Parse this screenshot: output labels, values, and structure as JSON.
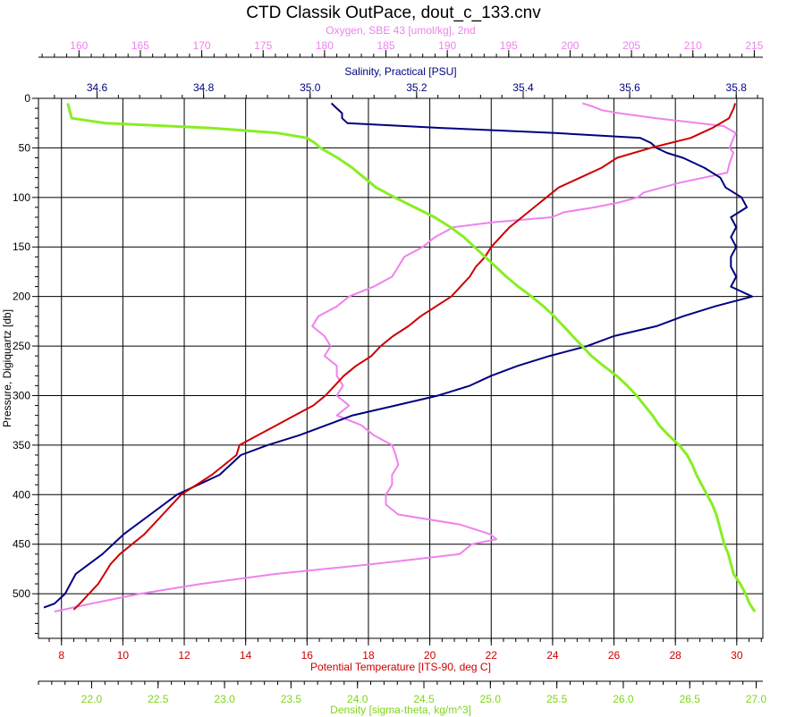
{
  "chart_data": {
    "type": "line",
    "title": "CTD Classik OutPace, dout_c_133.cnv",
    "y_axis": {
      "label": "Pressure, Digiquartz [db]",
      "range": [
        0,
        545
      ],
      "inverted": true,
      "ticks": [
        0,
        50,
        100,
        150,
        200,
        250,
        300,
        350,
        400,
        450,
        500
      ],
      "tick_labels": [
        "0",
        "50",
        "100",
        "150",
        "200",
        "250",
        "300",
        "350",
        "400",
        "450",
        "500"
      ]
    },
    "x_axes": [
      {
        "id": "oxygen",
        "position": "top-outer",
        "label": "Oxygen, SBE 43 [umol/kg], 2nd",
        "color": "#ee82ee",
        "range": [
          156.7,
          215.7
        ],
        "ticks": [
          160,
          165,
          170,
          175,
          180,
          185,
          190,
          195,
          200,
          205,
          210,
          215
        ],
        "tick_labels": [
          "160",
          "165",
          "170",
          "175",
          "180",
          "185",
          "190",
          "195",
          "200",
          "205",
          "210",
          "215"
        ]
      },
      {
        "id": "salinity",
        "position": "top-inner",
        "label": "Salinity, Practical [PSU]",
        "color": "#000080",
        "range": [
          34.49,
          35.85
        ],
        "ticks": [
          34.6,
          34.8,
          35.0,
          35.2,
          35.4,
          35.6,
          35.8
        ],
        "tick_labels": [
          "34.6",
          "34.8",
          "35.0",
          "35.2",
          "35.4",
          "35.6",
          "35.8"
        ]
      },
      {
        "id": "temperature",
        "position": "bottom-inner",
        "label": "Potential Temperature [ITS-90, deg C]",
        "color": "#cc0000",
        "range": [
          7.25,
          30.85
        ],
        "ticks": [
          8,
          10,
          12,
          14,
          16,
          18,
          20,
          22,
          24,
          26,
          28,
          30
        ],
        "tick_labels": [
          "8",
          "10",
          "12",
          "14",
          "16",
          "18",
          "20",
          "22",
          "24",
          "26",
          "28",
          "30"
        ]
      },
      {
        "id": "density",
        "position": "bottom-outer",
        "label": "Density [sigma-theta, kg/m^3]",
        "color": "#88ee22",
        "range": [
          21.6,
          27.05
        ],
        "ticks": [
          22.0,
          22.5,
          23.0,
          23.5,
          24.0,
          24.5,
          25.0,
          25.5,
          26.0,
          26.5,
          27.0
        ],
        "tick_labels": [
          "22.0",
          "22.5",
          "23.0",
          "23.5",
          "24.0",
          "24.5",
          "25.0",
          "25.5",
          "26.0",
          "26.5",
          "27.0"
        ]
      }
    ],
    "grid": true,
    "series": [
      {
        "name": "Oxygen, SBE 43 [umol/kg], 2nd",
        "axis": "oxygen",
        "color": "#ee82ee",
        "pressure": [
          5,
          8,
          12,
          15,
          20,
          28,
          35,
          40,
          50,
          55,
          65,
          75,
          85,
          95,
          100,
          105,
          110,
          115,
          120,
          125,
          130,
          140,
          150,
          160,
          170,
          180,
          190,
          200,
          210,
          220,
          230,
          240,
          250,
          260,
          270,
          280,
          290,
          300,
          310,
          320,
          330,
          340,
          350,
          360,
          370,
          380,
          390,
          400,
          410,
          420,
          430,
          440,
          445,
          450,
          460,
          470,
          480,
          490,
          500,
          510,
          518
        ],
        "values": [
          201.0,
          201.8,
          202.6,
          204.0,
          207.0,
          212.5,
          213.5,
          213.3,
          213.0,
          213.3,
          213.0,
          212.8,
          209.0,
          206.0,
          205.5,
          204.0,
          202.0,
          199.5,
          198.5,
          193.8,
          190.5,
          189.0,
          188.0,
          186.5,
          186.0,
          185.5,
          184.0,
          182.0,
          181.0,
          179.5,
          179.0,
          180.0,
          180.5,
          180.0,
          181.0,
          181.0,
          181.5,
          181.0,
          182.0,
          181.0,
          183.0,
          184.0,
          185.5,
          185.8,
          186.0,
          185.5,
          185.5,
          185.0,
          185.0,
          186.0,
          191.0,
          193.5,
          194.0,
          192.0,
          191.0,
          184.0,
          176.0,
          170.0,
          165.0,
          161.0,
          158.0
        ]
      },
      {
        "name": "Salinity, Practical [PSU]",
        "axis": "salinity",
        "color": "#000080",
        "pressure": [
          5,
          10,
          15,
          20,
          25,
          30,
          35,
          40,
          45,
          50,
          55,
          60,
          70,
          80,
          90,
          100,
          110,
          120,
          130,
          140,
          150,
          160,
          170,
          180,
          190,
          200,
          210,
          220,
          230,
          240,
          250,
          260,
          270,
          280,
          290,
          300,
          310,
          320,
          330,
          340,
          350,
          360,
          370,
          380,
          390,
          400,
          420,
          440,
          460,
          480,
          500,
          510,
          514
        ],
        "values": [
          35.04,
          35.05,
          35.06,
          35.06,
          35.07,
          35.25,
          35.46,
          35.62,
          35.64,
          35.65,
          35.67,
          35.7,
          35.74,
          35.77,
          35.78,
          35.81,
          35.82,
          35.79,
          35.8,
          35.79,
          35.8,
          35.79,
          35.79,
          35.8,
          35.79,
          35.83,
          35.76,
          35.7,
          35.65,
          35.57,
          35.52,
          35.45,
          35.39,
          35.34,
          35.3,
          35.24,
          35.16,
          35.08,
          35.03,
          34.98,
          34.92,
          34.87,
          34.85,
          34.83,
          34.79,
          34.75,
          34.7,
          34.65,
          34.61,
          34.56,
          34.54,
          34.52,
          34.5
        ]
      },
      {
        "name": "Potential Temperature [ITS-90, deg C]",
        "axis": "temperature",
        "color": "#cc0000",
        "pressure": [
          5,
          10,
          20,
          30,
          40,
          50,
          60,
          70,
          80,
          90,
          100,
          110,
          120,
          130,
          140,
          150,
          160,
          170,
          180,
          190,
          200,
          210,
          220,
          230,
          240,
          250,
          260,
          270,
          280,
          290,
          300,
          310,
          320,
          330,
          340,
          350,
          360,
          370,
          380,
          390,
          400,
          410,
          420,
          430,
          440,
          450,
          460,
          470,
          480,
          490,
          500,
          510,
          516
        ],
        "values": [
          29.95,
          29.9,
          29.75,
          29.2,
          28.5,
          27.2,
          26.1,
          25.6,
          24.9,
          24.2,
          23.8,
          23.4,
          23.0,
          22.6,
          22.3,
          22.0,
          21.8,
          21.5,
          21.3,
          21.0,
          20.7,
          20.2,
          19.7,
          19.3,
          18.8,
          18.4,
          18.1,
          17.6,
          17.2,
          16.9,
          16.6,
          16.2,
          15.6,
          15.0,
          14.4,
          13.8,
          13.7,
          13.3,
          12.9,
          12.4,
          11.9,
          11.6,
          11.3,
          11.0,
          10.7,
          10.3,
          9.9,
          9.6,
          9.4,
          9.2,
          8.9,
          8.6,
          8.4
        ]
      },
      {
        "name": "Density [sigma-theta, kg/m^3]",
        "axis": "density",
        "color": "#88ee22",
        "pressure": [
          5,
          10,
          15,
          20,
          25,
          30,
          35,
          40,
          45,
          50,
          60,
          70,
          80,
          90,
          100,
          110,
          120,
          130,
          140,
          150,
          160,
          170,
          180,
          190,
          200,
          210,
          220,
          230,
          240,
          250,
          260,
          270,
          280,
          290,
          300,
          310,
          320,
          330,
          340,
          350,
          360,
          370,
          380,
          390,
          400,
          410,
          420,
          430,
          440,
          450,
          460,
          470,
          480,
          490,
          500,
          510,
          518
        ],
        "values": [
          21.82,
          21.83,
          21.84,
          21.85,
          22.1,
          22.9,
          23.4,
          23.62,
          23.68,
          23.72,
          23.85,
          23.96,
          24.05,
          24.14,
          24.28,
          24.43,
          24.58,
          24.7,
          24.8,
          24.88,
          24.96,
          25.04,
          25.12,
          25.21,
          25.31,
          25.4,
          25.48,
          25.55,
          25.62,
          25.69,
          25.76,
          25.85,
          25.95,
          26.03,
          26.1,
          26.16,
          26.22,
          26.27,
          26.34,
          26.42,
          26.48,
          26.52,
          26.55,
          26.59,
          26.63,
          26.67,
          26.7,
          26.72,
          26.74,
          26.76,
          26.79,
          26.81,
          26.83,
          26.88,
          26.92,
          26.95,
          26.99
        ]
      }
    ]
  }
}
